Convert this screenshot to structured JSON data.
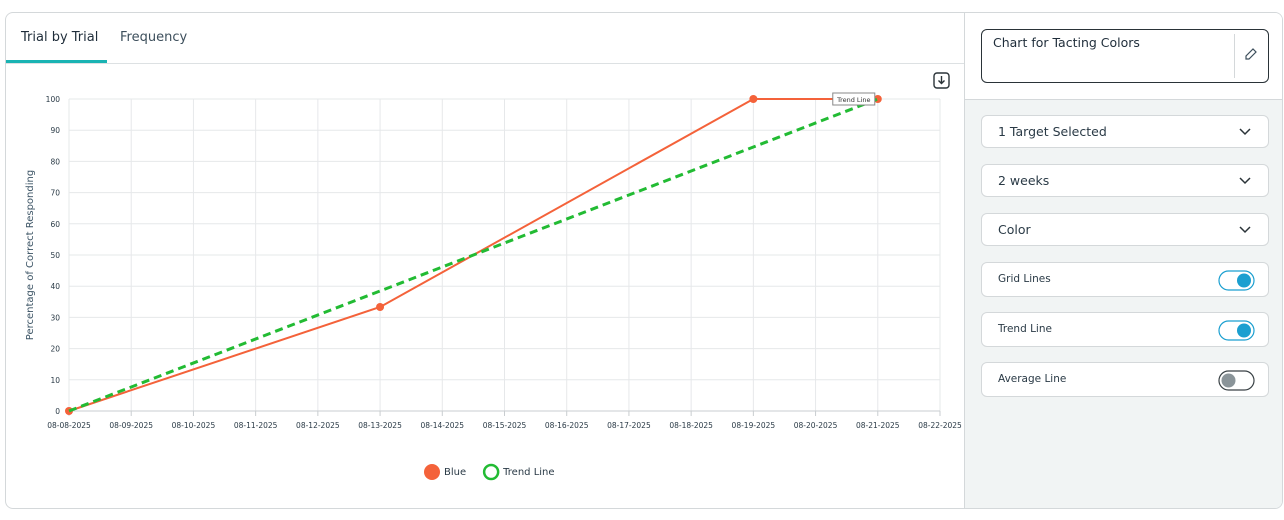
{
  "tabs": [
    "Trial by Trial",
    "Frequency"
  ],
  "chart_data": {
    "type": "line",
    "y_label": "Percentage of Correct Responding",
    "categories": [
      "08-08-2025",
      "08-09-2025",
      "08-10-2025",
      "08-11-2025",
      "08-12-2025",
      "08-13-2025",
      "08-14-2025",
      "08-15-2025",
      "08-16-2025",
      "08-17-2025",
      "08-18-2025",
      "08-19-2025",
      "08-20-2025",
      "08-21-2025",
      "08-22-2025"
    ],
    "series": [
      {
        "name": "Blue",
        "color": "#f4623a",
        "dashed": false,
        "markers": true,
        "x": [
          "08-08-2025",
          "08-13-2025",
          "08-19-2025",
          "08-21-2025"
        ],
        "values": [
          0,
          33.33,
          100,
          100
        ]
      },
      {
        "name": "Trend Line",
        "color": "#22bb33",
        "dashed": true,
        "markers": false,
        "x": [
          "08-08-2025",
          "08-21-2025"
        ],
        "values": [
          0,
          100
        ]
      }
    ],
    "annotation": "Trend Line",
    "ylim": [
      0,
      100
    ],
    "yticks": [
      0,
      10,
      20,
      30,
      40,
      50,
      60,
      70,
      80,
      90,
      100
    ],
    "grid": true
  },
  "sidebar": {
    "chart_name": "Chart for Tacting Colors",
    "dropdowns": [
      "1 Target Selected",
      "2 weeks",
      "Color"
    ],
    "toggles": [
      {
        "label": "Grid Lines",
        "on": true
      },
      {
        "label": "Trend Line",
        "on": true
      },
      {
        "label": "Average Line",
        "on": false
      }
    ]
  }
}
